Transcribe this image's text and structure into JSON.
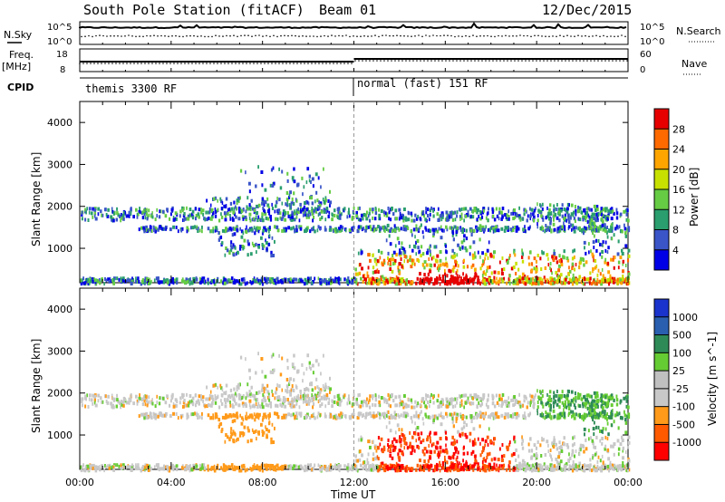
{
  "header": {
    "station": "South Pole Station (fitACF)",
    "beam": "Beam 01",
    "date": "12/Dec/2015"
  },
  "colors": {
    "power_scale": [
      "#0000e6",
      "#3a55c8",
      "#2a9e6e",
      "#66cc44",
      "#c8e000",
      "#ffa500",
      "#ff6a00",
      "#e60000"
    ],
    "velocity_scale": [
      "#ff0000",
      "#ff5a00",
      "#ff9a1a",
      "#c8c8c8",
      "#c0c0c0",
      "#66cc33",
      "#2e8b57",
      "#2a5fb0",
      "#1a33cc"
    ],
    "ground_scatter": "#a0a0a0"
  },
  "top_panels": {
    "nsky_label": "N.Sky",
    "nsearch_label": "N.Search",
    "nsky_ticks": [
      "10^5",
      "10^0"
    ],
    "freq_label": "Freq.",
    "freq_unit": "[MHz]",
    "freq_ticks": [
      "18",
      "8"
    ],
    "nave_label": "Nave",
    "nave_ticks": [
      "60",
      "0"
    ],
    "cpid_label": "CPID",
    "cpid_segments": [
      "themis 3300 RF",
      "normal (fast) 151 RF"
    ]
  },
  "chart_data": [
    {
      "type": "heatmap",
      "title": "",
      "ylabel": "Slant Range [km]",
      "xlabel": "",
      "xlim": [
        "00:00",
        "00:00"
      ],
      "ylim": [
        180,
        4500
      ],
      "yticks": [
        1000,
        2000,
        3000,
        4000
      ],
      "colorbar_label": "Power [dB]",
      "colorbar_ticks": [
        4,
        8,
        12,
        16,
        20,
        24,
        28
      ],
      "description_bands": [
        {
          "range_km": [
            1700,
            2000
          ],
          "time": [
            "00:00",
            "24:00"
          ],
          "level": "low"
        },
        {
          "range_km": [
            1400,
            1600
          ],
          "time": [
            "00:00",
            "24:00"
          ],
          "level": "low"
        },
        {
          "range_km": [
            180,
            800
          ],
          "time": [
            "12:00",
            "24:00"
          ],
          "level": "high"
        }
      ]
    },
    {
      "type": "heatmap",
      "title": "",
      "ylabel": "Slant Range [km]",
      "xlabel": "Time UT",
      "xlim": [
        "00:00",
        "00:00"
      ],
      "ylim": [
        180,
        4500
      ],
      "yticks": [
        1000,
        2000,
        3000,
        4000
      ],
      "xticks": [
        "00:00",
        "04:00",
        "08:00",
        "12:00",
        "16:00",
        "20:00",
        "00:00"
      ],
      "colorbar_label": "Velocity [m s^-1]",
      "colorbar_ticks": [
        1000,
        500,
        100,
        25,
        -25,
        -100,
        -500,
        -1000
      ]
    }
  ]
}
